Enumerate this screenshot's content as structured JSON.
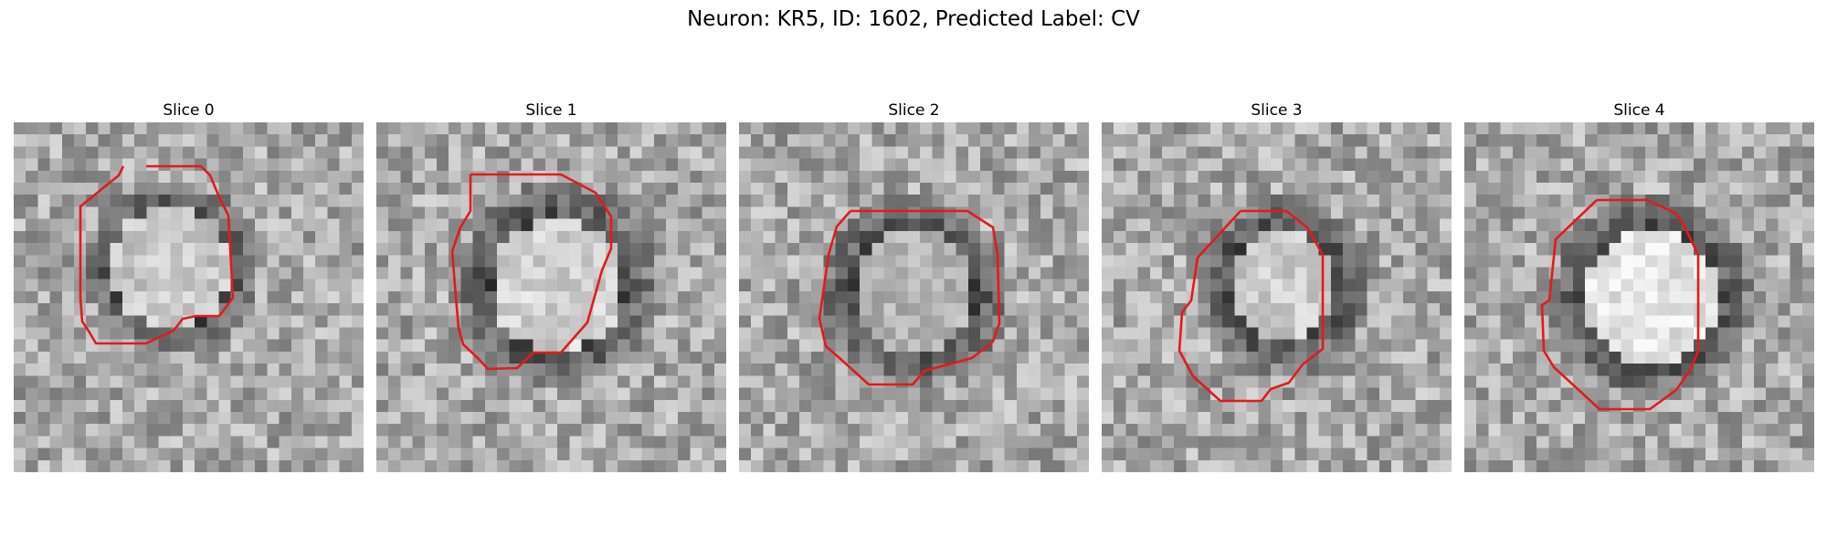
{
  "figure": {
    "title": "Neuron: KR5, ID: 1602, Predicted Label: CV"
  },
  "colors": {
    "contour": "#e31a1c",
    "colormap": "grayscale"
  },
  "slices": [
    {
      "label": "Slice 0",
      "seed": 11,
      "blob": {
        "cx": 12.5,
        "cy": 11.5,
        "r": 5.0,
        "ring": 7.2,
        "bright": 0.78
      }
    },
    {
      "label": "Slice 1",
      "seed": 23,
      "blob": {
        "cx": 14.5,
        "cy": 13.0,
        "r": 5.5,
        "ring": 8.5,
        "bright": 0.82
      }
    },
    {
      "label": "Slice 2",
      "seed": 37,
      "blob": {
        "cx": 14.0,
        "cy": 13.5,
        "r": 5.0,
        "ring": 8.0,
        "bright": 0.7
      }
    },
    {
      "label": "Slice 3",
      "seed": 41,
      "blob": {
        "cx": 14.5,
        "cy": 13.0,
        "r": 4.5,
        "ring": 7.5,
        "bright": 0.8
      }
    },
    {
      "label": "Slice 4",
      "seed": 59,
      "blob": {
        "cx": 15.0,
        "cy": 14.0,
        "r": 5.5,
        "ring": 8.5,
        "bright": 0.9
      }
    }
  ]
}
